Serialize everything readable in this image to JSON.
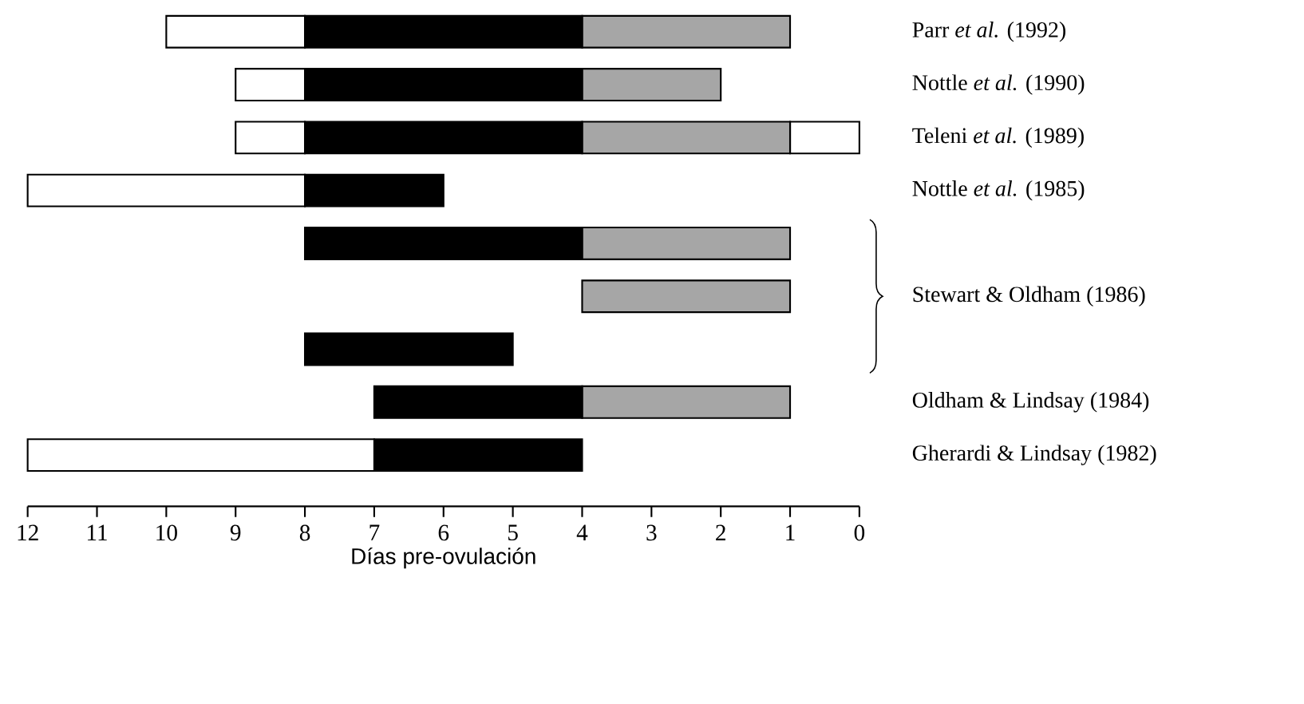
{
  "chart_data": {
    "type": "bar",
    "orientation": "horizontal",
    "categories": [
      "Parr *et al.* (1992)",
      "Nottle *et al.* (1990)",
      "Teleni *et al.* (1989)",
      "Nottle *et al.* (1985)",
      null,
      "Stewart & Oldham (1986)",
      null,
      "Oldham & Lindsay (1984)",
      "Gherardi & Lindsay (1982)"
    ],
    "series": [
      {
        "color": "#ffffff",
        "base": [
          null,
          null,
          0,
          null,
          null,
          null,
          null,
          null,
          null
        ],
        "values": [
          null,
          null,
          1,
          null,
          null,
          null,
          null,
          null,
          null
        ]
      },
      {
        "color": "#a6a6a6",
        "base": [
          1,
          2,
          1,
          null,
          1,
          1,
          null,
          1,
          null
        ],
        "values": [
          3,
          2,
          3,
          null,
          3,
          3,
          null,
          3,
          null
        ]
      },
      {
        "color": "#000000",
        "base": [
          4,
          4,
          4,
          6,
          4,
          null,
          5,
          4,
          4
        ],
        "values": [
          4,
          4,
          4,
          2,
          4,
          null,
          3,
          3,
          3
        ]
      },
      {
        "color": "#ffffff",
        "base": [
          8,
          8,
          8,
          8,
          null,
          null,
          null,
          null,
          7
        ],
        "values": [
          2,
          1,
          1,
          4,
          null,
          null,
          null,
          null,
          5
        ]
      }
    ],
    "xlim": [
      12,
      0
    ],
    "xticks": [
      0,
      1,
      2,
      3,
      4,
      5,
      6,
      7,
      8,
      9,
      10,
      11,
      12
    ],
    "xlabel": "Días pre-ovulación"
  }
}
